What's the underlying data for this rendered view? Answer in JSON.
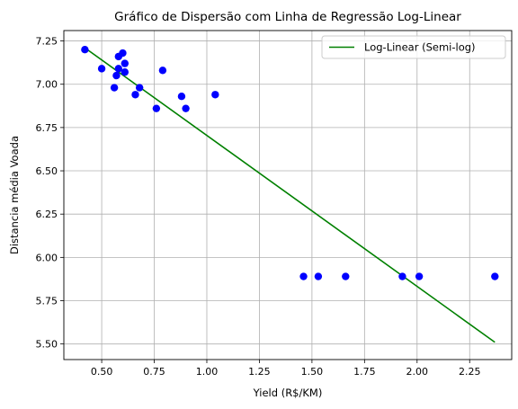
{
  "chart_data": {
    "type": "scatter",
    "title": "Gráfico de Dispersão com Linha de Regressão Log-Linear",
    "xlabel": "Yield (R$/KM)",
    "ylabel": "Distancia média Voada",
    "xlim": [
      0.32,
      2.45
    ],
    "ylim": [
      5.41,
      7.31
    ],
    "xticks": [
      0.5,
      0.75,
      1.0,
      1.25,
      1.5,
      1.75,
      2.0,
      2.25
    ],
    "xtick_labels": [
      "0.50",
      "0.75",
      "1.00",
      "1.25",
      "1.50",
      "1.75",
      "2.00",
      "2.25"
    ],
    "yticks": [
      5.5,
      5.75,
      6.0,
      6.25,
      6.5,
      6.75,
      7.0,
      7.25
    ],
    "ytick_labels": [
      "5.50",
      "5.75",
      "6.00",
      "6.25",
      "6.50",
      "6.75",
      "7.00",
      "7.25"
    ],
    "grid": true,
    "legend_position": "top-right",
    "scatter_color": "#0000ff",
    "points": {
      "x": [
        0.42,
        0.5,
        0.56,
        0.57,
        0.58,
        0.58,
        0.6,
        0.61,
        0.61,
        0.66,
        0.68,
        0.76,
        0.79,
        0.88,
        0.9,
        1.04,
        1.46,
        1.53,
        1.66,
        1.93,
        2.01,
        2.37
      ],
      "y": [
        7.2,
        7.09,
        6.98,
        7.05,
        7.09,
        7.16,
        7.18,
        7.12,
        7.07,
        6.94,
        6.98,
        6.86,
        7.08,
        6.93,
        6.86,
        6.94,
        5.89,
        5.89,
        5.89,
        5.89,
        5.89,
        5.89
      ]
    },
    "series": [
      {
        "name": "Log-Linear (Semi-log)",
        "color": "#008000",
        "x": [
          0.42,
          2.37
        ],
        "y": [
          7.21,
          5.51
        ]
      }
    ]
  }
}
